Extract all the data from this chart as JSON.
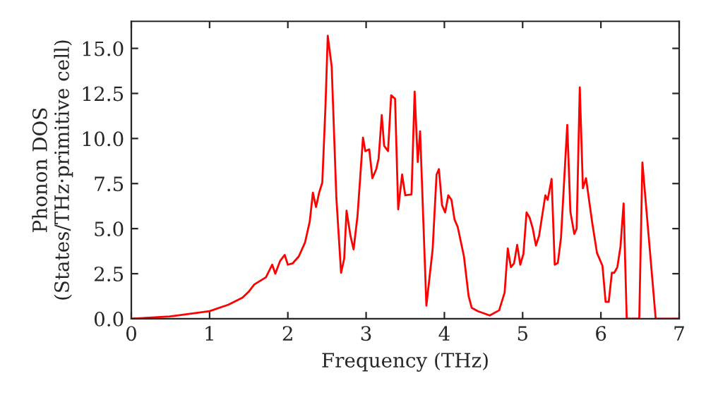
{
  "chart_data": {
    "type": "line",
    "xlabel": "Frequency (THz)",
    "ylabel": "Phonon DOS\n(States/THz·primitive cell)",
    "xlim": [
      0,
      7
    ],
    "ylim": [
      0,
      16.5
    ],
    "xticks": [
      0,
      1,
      2,
      3,
      4,
      5,
      6,
      7
    ],
    "yticks": [
      {
        "value": 0,
        "label": "0.0"
      },
      {
        "value": 2.5,
        "label": "2.5"
      },
      {
        "value": 5,
        "label": "5.0"
      },
      {
        "value": 7.5,
        "label": "7.5"
      },
      {
        "value": 10,
        "label": "10.0"
      },
      {
        "value": 12.5,
        "label": "12.5"
      },
      {
        "value": 15,
        "label": "15.0"
      }
    ],
    "grid": false,
    "marker": "none",
    "line_style": "solid",
    "series": [
      {
        "color": "#ff0000",
        "x": [
          0,
          0.49,
          1.0,
          1.24,
          1.42,
          1.5,
          1.57,
          1.72,
          1.8,
          1.84,
          1.9,
          1.96,
          2.0,
          2.06,
          2.14,
          2.22,
          2.28,
          2.32,
          2.36,
          2.4,
          2.44,
          2.48,
          2.51,
          2.56,
          2.62,
          2.68,
          2.72,
          2.75,
          2.8,
          2.84,
          2.89,
          2.96,
          2.99,
          3.04,
          3.08,
          3.13,
          3.16,
          3.2,
          3.23,
          3.28,
          3.32,
          3.37,
          3.41,
          3.46,
          3.5,
          3.58,
          3.62,
          3.66,
          3.69,
          3.77,
          3.85,
          3.9,
          3.93,
          3.97,
          4.01,
          4.05,
          4.09,
          4.13,
          4.17,
          4.25,
          4.31,
          4.35,
          4.43,
          4.58,
          4.7,
          4.77,
          4.81,
          4.85,
          4.89,
          4.93,
          4.97,
          5.01,
          5.05,
          5.09,
          5.13,
          5.17,
          5.21,
          5.29,
          5.32,
          5.37,
          5.41,
          5.45,
          5.49,
          5.57,
          5.61,
          5.66,
          5.69,
          5.73,
          5.77,
          5.81,
          5.89,
          5.95,
          6.02,
          6.06,
          6.1,
          6.14,
          6.17,
          6.21,
          6.25,
          6.29,
          6.33,
          6.49,
          6.53,
          6.65,
          6.7,
          7.0
        ],
        "values": [
          0,
          0.13,
          0.42,
          0.78,
          1.17,
          1.5,
          1.9,
          2.3,
          3.0,
          2.5,
          3.2,
          3.54,
          3.0,
          3.07,
          3.46,
          4.24,
          5.4,
          7.0,
          6.2,
          7.0,
          7.55,
          11.7,
          15.7,
          14.0,
          6.7,
          2.55,
          3.33,
          6.0,
          4.6,
          3.85,
          5.7,
          10.05,
          9.3,
          9.4,
          7.8,
          8.3,
          8.9,
          11.3,
          9.6,
          9.3,
          12.4,
          12.2,
          6.07,
          8.0,
          6.85,
          6.9,
          12.6,
          8.7,
          10.4,
          0.73,
          3.85,
          8.0,
          8.3,
          6.3,
          5.9,
          6.85,
          6.6,
          5.5,
          5.1,
          3.46,
          1.25,
          0.6,
          0.42,
          0.18,
          0.47,
          1.46,
          3.9,
          2.86,
          3.07,
          4.1,
          3.0,
          3.6,
          5.9,
          5.6,
          5.0,
          4.06,
          4.6,
          6.85,
          6.6,
          7.76,
          3.0,
          3.1,
          4.5,
          10.75,
          5.94,
          4.7,
          5.0,
          12.84,
          7.24,
          7.8,
          5.3,
          3.65,
          2.94,
          0.94,
          0.94,
          2.55,
          2.55,
          2.86,
          4.0,
          6.4,
          0,
          0,
          8.67,
          2.55,
          0,
          0
        ]
      }
    ]
  }
}
